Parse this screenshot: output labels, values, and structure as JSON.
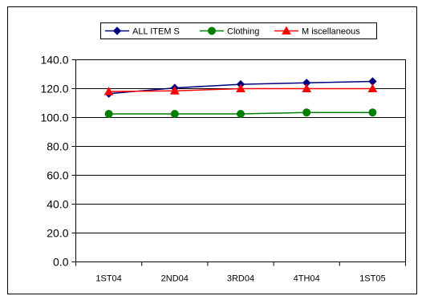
{
  "chart_data": {
    "type": "line",
    "categories": [
      "1ST04",
      "2ND04",
      "3RD04",
      "4TH04",
      "1ST05"
    ],
    "ylim": [
      0,
      140
    ],
    "yticks": [
      0,
      20,
      40,
      60,
      80,
      100,
      120,
      140
    ],
    "ytick_labels": [
      "0.0",
      "20.0",
      "40.0",
      "60.0",
      "80.0",
      "100.0",
      "120.0",
      "140.0"
    ],
    "grid": true,
    "legend_position": "top",
    "series": [
      {
        "name": "ALL ITEM S",
        "color": "#00007f",
        "marker": "diamond",
        "values": [
          116.5,
          120.5,
          123.0,
          124.0,
          125.0
        ]
      },
      {
        "name": "Clothing",
        "color": "#008000",
        "marker": "circle",
        "values": [
          102.5,
          102.5,
          102.5,
          103.5,
          103.5
        ]
      },
      {
        "name": "M iscellaneous",
        "color": "#ff0000",
        "marker": "triangle",
        "values": [
          118.0,
          118.5,
          120.0,
          120.0,
          120.0
        ]
      }
    ]
  }
}
